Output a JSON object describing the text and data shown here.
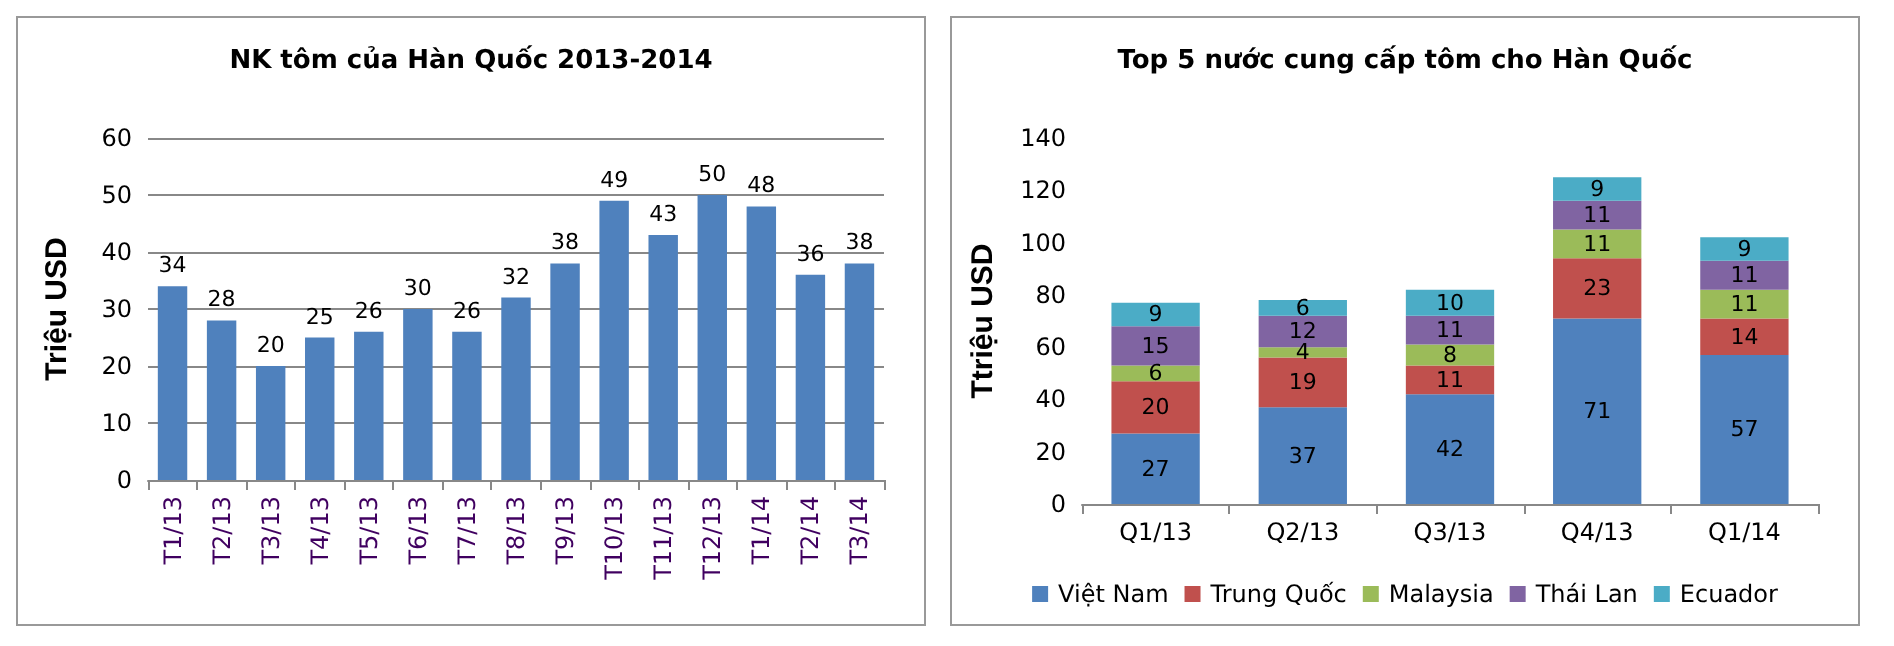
{
  "chart_data": [
    {
      "type": "bar",
      "title": "NK tôm của Hàn Quốc 2013-2014",
      "ylabel": "Triệu USD",
      "categories": [
        "T1/13",
        "T2/13",
        "T3/13",
        "T4/13",
        "T5/13",
        "T6/13",
        "T7/13",
        "T8/13",
        "T9/13",
        "T10/13",
        "T11/13",
        "T12/13",
        "T1/14",
        "T2/14",
        "T3/14"
      ],
      "series": [
        {
          "color": "#4f81bd",
          "values": [
            34,
            28,
            20,
            25,
            26,
            30,
            26,
            32,
            38,
            49,
            43,
            50,
            48,
            36,
            38
          ]
        }
      ],
      "ylim": [
        0,
        60
      ],
      "yticks": [
        0,
        10,
        20,
        30,
        40,
        50,
        60
      ],
      "grid": "y",
      "data_labels": true,
      "legend": false
    },
    {
      "type": "bar",
      "title": "Top 5 nước cung cấp tôm cho Hàn Quốc",
      "ylabel": "Ttriệu USD",
      "categories": [
        "Q1/13",
        "Q2/13",
        "Q3/13",
        "Q4/13",
        "Q1/14"
      ],
      "stacked": true,
      "series": [
        {
          "name": "Việt Nam",
          "color": "#4f81bd",
          "values": [
            27,
            37,
            42,
            71,
            57
          ]
        },
        {
          "name": "Trung Quốc",
          "color": "#c0504d",
          "values": [
            20,
            19,
            11,
            23,
            14
          ]
        },
        {
          "name": "Malaysia",
          "color": "#9bbb59",
          "values": [
            6,
            4,
            8,
            11,
            11
          ]
        },
        {
          "name": "Thái Lan",
          "color": "#8064a2",
          "values": [
            15,
            12,
            11,
            11,
            11
          ]
        },
        {
          "name": "Ecuador",
          "color": "#4bacc6",
          "values": [
            9,
            6,
            10,
            9,
            9
          ]
        }
      ],
      "ylim": [
        0,
        140
      ],
      "yticks": [
        0,
        20,
        40,
        60,
        80,
        100,
        120,
        140
      ],
      "grid": false,
      "data_labels": true,
      "legend": "bottom"
    }
  ]
}
